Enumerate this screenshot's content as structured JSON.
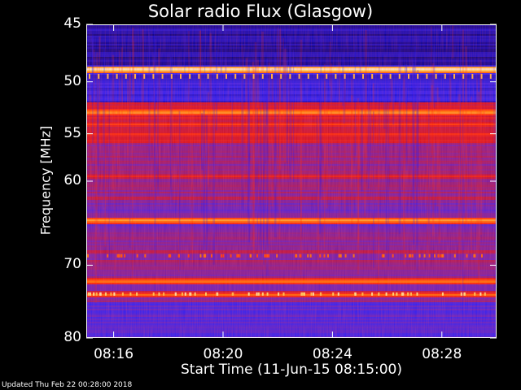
{
  "header": {
    "title": "Solar radio Flux (Glasgow)"
  },
  "footer": {
    "updated": "Updated Thu Feb 22 00:28:00 2018"
  },
  "chart_data": {
    "type": "heatmap",
    "title": "Solar radio Flux (Glasgow)",
    "xlabel": "Start Time (11-Jun-15 08:15:00)",
    "ylabel": "Frequency [MHz]",
    "x_start_min": 0,
    "x_end_min": 15,
    "xlim_minutes_after_0815": [
      0,
      15
    ],
    "ylim_mhz": [
      45,
      80
    ],
    "y_scale": "log",
    "x_ticks": [
      {
        "label": "08:16",
        "minute": 1
      },
      {
        "label": "08:20",
        "minute": 5
      },
      {
        "label": "08:24",
        "minute": 9
      },
      {
        "label": "08:28",
        "minute": 13
      }
    ],
    "y_ticks": [
      {
        "label": "45",
        "mhz": 45
      },
      {
        "label": "50",
        "mhz": 50
      },
      {
        "label": "55",
        "mhz": 55
      },
      {
        "label": "60",
        "mhz": 60
      },
      {
        "label": "70",
        "mhz": 70
      },
      {
        "label": "80",
        "mhz": 80
      }
    ],
    "colormap": [
      "#000020",
      "#0000a0",
      "#2020ff",
      "#6020c0",
      "#a01860",
      "#d01020",
      "#ff3000",
      "#ff8000",
      "#ffe060",
      "#ffffff"
    ],
    "bands": [
      {
        "mhz": 48.8,
        "intensity": 0.98
      },
      {
        "mhz": 52.8,
        "intensity": 0.85
      },
      {
        "mhz": 54.0,
        "intensity": 0.7
      },
      {
        "mhz": 55.0,
        "intensity": 0.68
      },
      {
        "mhz": 59.4,
        "intensity": 0.62
      },
      {
        "mhz": 61.8,
        "intensity": 0.55
      },
      {
        "mhz": 64.4,
        "intensity": 0.85
      },
      {
        "mhz": 68.2,
        "intensity": 0.55
      },
      {
        "mhz": 69.4,
        "intensity": 0.5
      },
      {
        "mhz": 72.0,
        "intensity": 0.8
      },
      {
        "mhz": 73.8,
        "intensity": 0.75
      }
    ]
  }
}
